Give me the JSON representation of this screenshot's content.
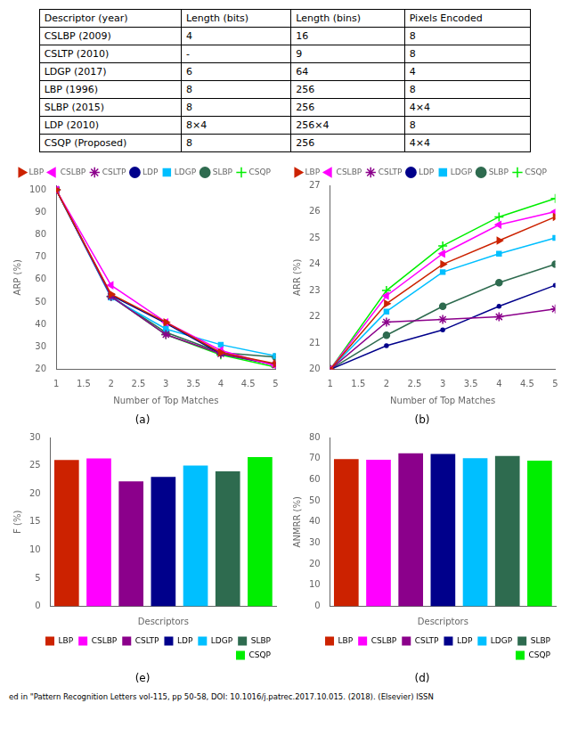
{
  "chart_data": [
    {
      "type": "table",
      "headers": [
        "Descriptor (year)",
        "Length (bits)",
        "Length (bins)",
        "Pixels Encoded"
      ],
      "rows": [
        [
          "CSLBP (2009)",
          "4",
          "16",
          "8"
        ],
        [
          "CSLTP (2010)",
          "-",
          "9",
          "8"
        ],
        [
          "LDGP (2017)",
          "6",
          "64",
          "4"
        ],
        [
          "LBP (1996)",
          "8",
          "256",
          "8"
        ],
        [
          "SLBP (2015)",
          "8",
          "256",
          "4×4"
        ],
        [
          "LDP (2010)",
          "8×4",
          "256×4",
          "8"
        ],
        [
          "CSQP (Proposed)",
          "8",
          "256",
          "4×4"
        ]
      ]
    },
    {
      "type": "line",
      "title": "(a)",
      "x_label": "Number of Top Matches",
      "y_label": "ARP (%)",
      "x": [
        1,
        2,
        3,
        4,
        5
      ],
      "xlim": [
        1,
        5
      ],
      "xticks": [
        1,
        1.5,
        2,
        2.5,
        3,
        3.5,
        4,
        4.5,
        5
      ],
      "ylim": [
        20,
        102
      ],
      "yticks": [
        20,
        30,
        40,
        50,
        60,
        70,
        80,
        90,
        100
      ],
      "grid": false,
      "legend": "upper right",
      "series": [
        {
          "name": "LBP",
          "color": "#CC2200",
          "marker": "triangle_right",
          "values": [
            100,
            53.5,
            41.0,
            27.5,
            22.5
          ]
        },
        {
          "name": "CSLBP",
          "color": "#FF00FF",
          "marker": "triangle_left",
          "values": [
            100,
            57.5,
            41.0,
            28.5,
            21.5
          ]
        },
        {
          "name": "CSLTP",
          "color": "#8B008B",
          "marker": "star",
          "values": [
            100,
            52.5,
            35.5,
            27.0,
            22.0
          ]
        },
        {
          "name": "LDP",
          "color": "#00008B",
          "marker": "point",
          "values": [
            100,
            53.0,
            40.5,
            27.0,
            22.0
          ]
        },
        {
          "name": "LDGP",
          "color": "#00BFFF",
          "marker": "square",
          "values": [
            100,
            52.0,
            38.0,
            31.0,
            26.0
          ]
        },
        {
          "name": "SLBP",
          "color": "#2E6B4F",
          "marker": "circle",
          "values": [
            100,
            52.5,
            36.5,
            27.5,
            25.5
          ]
        },
        {
          "name": "CSQP",
          "color": "#00EE00",
          "marker": "plus",
          "values": [
            100,
            52.5,
            35.5,
            26.5,
            21.0
          ]
        }
      ]
    },
    {
      "type": "line",
      "title": "(b)",
      "x_label": "Number of Top Matches",
      "y_label": "ARR (%)",
      "x": [
        1,
        2,
        3,
        4,
        5
      ],
      "xlim": [
        1,
        5
      ],
      "xticks": [
        1,
        1.5,
        2,
        2.5,
        3,
        3.5,
        4,
        4.5,
        5
      ],
      "ylim": [
        20,
        27
      ],
      "yticks": [
        20,
        21,
        22,
        23,
        24,
        25,
        26,
        27
      ],
      "grid": false,
      "legend": "upper left",
      "series": [
        {
          "name": "LBP",
          "color": "#CC2200",
          "marker": "triangle_right",
          "values": [
            20.0,
            22.5,
            24.0,
            24.9,
            25.8
          ]
        },
        {
          "name": "CSLBP",
          "color": "#FF00FF",
          "marker": "triangle_left",
          "values": [
            20.0,
            22.8,
            24.4,
            25.5,
            26.0
          ]
        },
        {
          "name": "CSLTP",
          "color": "#8B008B",
          "marker": "star",
          "values": [
            20.0,
            21.8,
            21.9,
            22.0,
            22.3
          ]
        },
        {
          "name": "LDP",
          "color": "#00008B",
          "marker": "point",
          "values": [
            20.0,
            20.9,
            21.5,
            22.4,
            23.2
          ]
        },
        {
          "name": "LDGP",
          "color": "#00BFFF",
          "marker": "square",
          "values": [
            20.0,
            22.2,
            23.7,
            24.4,
            25.0
          ]
        },
        {
          "name": "SLBP",
          "color": "#2E6B4F",
          "marker": "circle",
          "values": [
            20.0,
            21.3,
            22.4,
            23.3,
            24.0
          ]
        },
        {
          "name": "CSQP",
          "color": "#00EE00",
          "marker": "plus",
          "values": [
            20.0,
            23.0,
            24.7,
            25.8,
            26.5
          ]
        }
      ]
    },
    {
      "type": "bar",
      "title": "(e)",
      "x_label": "Descriptors",
      "y_label": "F (%)",
      "categories": [
        "LBP",
        "CSLBP",
        "CSLTP",
        "LDP",
        "LDGP",
        "SLBP",
        "CSQP"
      ],
      "values": [
        26.0,
        26.3,
        22.2,
        23.0,
        25.0,
        24.0,
        26.5
      ],
      "colors": [
        "#CC2200",
        "#FF00FF",
        "#8B008B",
        "#00008B",
        "#00BFFF",
        "#2E6B4F",
        "#00EE00"
      ],
      "ylim": [
        0,
        30
      ],
      "yticks": [
        0,
        5,
        10,
        15,
        20,
        25,
        30
      ],
      "grid": false,
      "legend": "lower right",
      "tick_labels": "y"
    },
    {
      "type": "bar",
      "title": "(d)",
      "x_label": "Descriptors",
      "y_label": "ANMRR (%)",
      "categories": [
        "LBP",
        "CSLBP",
        "CSLTP",
        "LDP",
        "LDGP",
        "SLBP",
        "CSQP"
      ],
      "values": [
        69.8,
        69.5,
        72.5,
        72.2,
        70.2,
        71.2,
        69.0
      ],
      "colors": [
        "#CC2200",
        "#FF00FF",
        "#8B008B",
        "#00008B",
        "#00BFFF",
        "#2E6B4F",
        "#00EE00"
      ],
      "ylim": [
        0,
        80
      ],
      "yticks": [
        0,
        10,
        20,
        30,
        40,
        50,
        60,
        70,
        80
      ],
      "grid": false,
      "legend": "lower right",
      "tick_labels": "y"
    },
    {
      "type": "text",
      "annotations": [
        "ed in \"Pattern Recognition Letters vol-115, pp 50-58, DOI: 10.1016/j.patrec.2017.10.015. (2018). (Elsevier) ISSN"
      ]
    }
  ]
}
